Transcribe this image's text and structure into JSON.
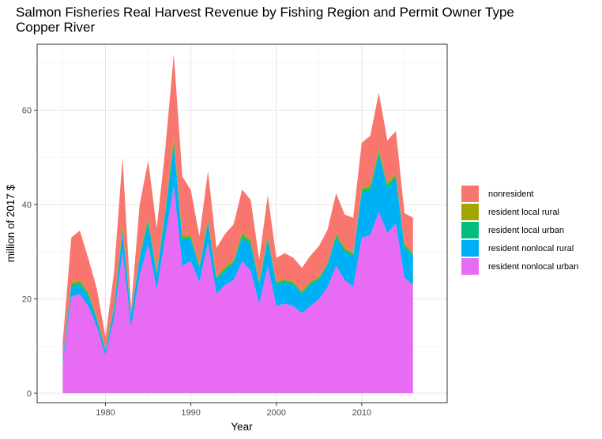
{
  "chart_data": {
    "type": "area",
    "stacked": true,
    "title": "Salmon Fisheries Real Harvest Revenue by Fishing Region and Permit Owner Type",
    "subtitle": "Copper River",
    "xlabel": "Year",
    "ylabel": "million of 2017 $",
    "xlim": [
      1972,
      2020
    ],
    "ylim": [
      -2,
      74
    ],
    "x_ticks": [
      1980,
      1990,
      2000,
      2010
    ],
    "y_ticks": [
      0,
      20,
      40,
      60
    ],
    "grid": true,
    "legend_position": "right",
    "x": [
      1975,
      1976,
      1977,
      1978,
      1979,
      1980,
      1981,
      1982,
      1983,
      1984,
      1985,
      1986,
      1987,
      1988,
      1989,
      1990,
      1991,
      1992,
      1993,
      1994,
      1995,
      1996,
      1997,
      1998,
      1999,
      2000,
      2001,
      2002,
      2003,
      2004,
      2005,
      2006,
      2007,
      2008,
      2009,
      2010,
      2011,
      2012,
      2013,
      2014,
      2015,
      2016
    ],
    "series": [
      {
        "name": "resident nonlocal urban",
        "color": "#E76BF3",
        "values": [
          6.5,
          20.5,
          21,
          18.5,
          14,
          8,
          16,
          30,
          14,
          25,
          31.5,
          22,
          33,
          44,
          27,
          28,
          23.5,
          32,
          21,
          23,
          24,
          28,
          26,
          19,
          27,
          18.5,
          19,
          18.5,
          17,
          18.5,
          20,
          22.5,
          27,
          24,
          22.5,
          33,
          33.5,
          38.5,
          34,
          36,
          24.5,
          23
        ]
      },
      {
        "name": "resident nonlocal rural",
        "color": "#00B0F6",
        "values": [
          1,
          2,
          2,
          2,
          1.5,
          1,
          2,
          4,
          2.5,
          3.5,
          4.5,
          3,
          5,
          8.5,
          5.5,
          4.5,
          3,
          4,
          3,
          3,
          3.5,
          5,
          5.5,
          4,
          5.5,
          4.5,
          4.5,
          4.5,
          4,
          4.5,
          4,
          4.5,
          6,
          6,
          6.5,
          9.5,
          9.5,
          12,
          9.5,
          9.5,
          6.5,
          6
        ]
      },
      {
        "name": "resident local urban",
        "color": "#00BF7D",
        "values": [
          0.2,
          0.5,
          0.5,
          0.5,
          0.3,
          0.2,
          0.3,
          0.8,
          0.3,
          0.5,
          0.7,
          0.5,
          0.7,
          1,
          0.5,
          0.5,
          0.4,
          0.6,
          0.4,
          0.4,
          0.4,
          0.6,
          0.5,
          0.4,
          0.5,
          0.4,
          0.4,
          0.4,
          0.3,
          0.4,
          0.4,
          0.4,
          0.5,
          0.5,
          0.4,
          0.6,
          0.6,
          0.7,
          0.6,
          0.6,
          0.4,
          0.4
        ]
      },
      {
        "name": "resident local rural",
        "color": "#A3A500",
        "values": [
          0.2,
          0.5,
          0.5,
          0.5,
          0.3,
          0.2,
          0.3,
          0.7,
          0.3,
          0.5,
          0.6,
          0.5,
          0.6,
          0.9,
          0.5,
          0.5,
          0.4,
          0.5,
          0.4,
          0.4,
          0.4,
          0.6,
          0.5,
          0.4,
          0.5,
          0.3,
          0.3,
          0.3,
          0.3,
          0.3,
          0.3,
          0.3,
          0.4,
          0.4,
          0.3,
          0.5,
          0.5,
          0.5,
          0.5,
          0.5,
          0.3,
          0.3
        ]
      },
      {
        "name": "nonresident",
        "color": "#F8766D",
        "values": [
          3,
          9.5,
          10.5,
          7,
          6,
          2.5,
          7,
          14.5,
          1,
          10.5,
          12,
          9,
          12.5,
          17.5,
          12.5,
          9.5,
          6,
          10,
          6,
          7,
          7.5,
          9,
          8.5,
          4.5,
          8.5,
          5,
          5.5,
          5,
          5,
          5.5,
          6.5,
          7,
          8.5,
          7,
          7.5,
          9.5,
          10.5,
          12,
          9,
          9,
          6.5,
          7.5
        ]
      }
    ],
    "legend_order": [
      "nonresident",
      "resident local rural",
      "resident local urban",
      "resident nonlocal rural",
      "resident nonlocal urban"
    ]
  }
}
